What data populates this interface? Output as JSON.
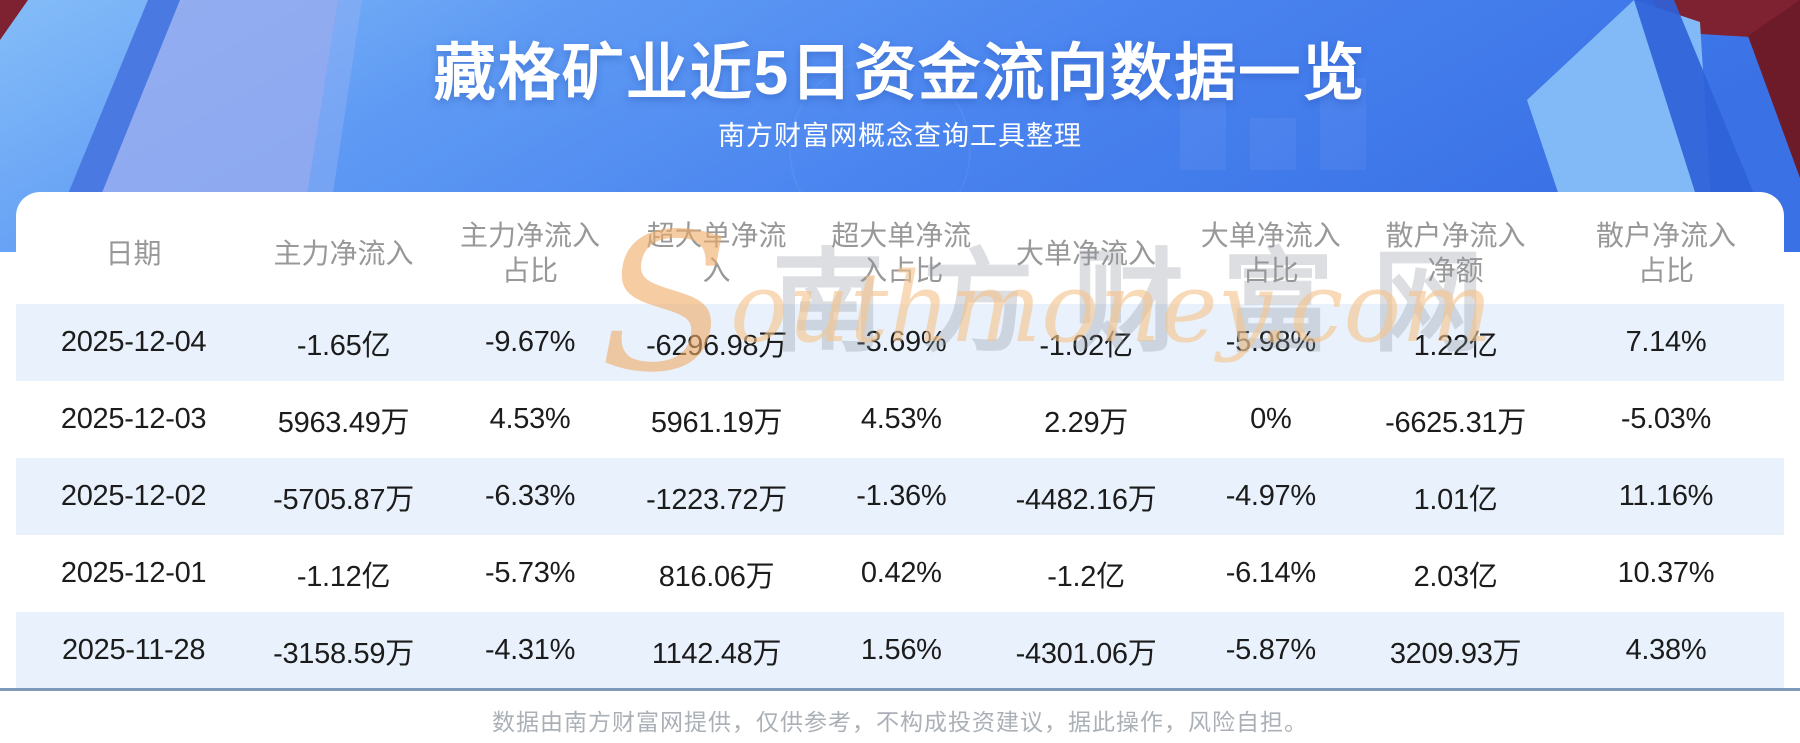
{
  "header": {
    "title": "藏格矿业近5日资金流向数据一览",
    "subtitle": "南方财富网概念查询工具整理"
  },
  "watermark": {
    "cn": "南方财富网",
    "en_first": "S",
    "en_rest": "outhmoney.com"
  },
  "chart_data": {
    "type": "table",
    "title": "藏格矿业近5日资金流向数据一览",
    "columns": [
      "日期",
      "主力净流入",
      "主力净流入占比",
      "超大单净流入",
      "超大单净流入占比",
      "大单净流入",
      "大单净流入占比",
      "散户净流入净额",
      "散户净流入占比"
    ],
    "rows": [
      [
        "2025-12-04",
        "-1.65亿",
        "-9.67%",
        "-6296.98万",
        "-3.69%",
        "-1.02亿",
        "-5.98%",
        "1.22亿",
        "7.14%"
      ],
      [
        "2025-12-03",
        "5963.49万",
        "4.53%",
        "5961.19万",
        "4.53%",
        "2.29万",
        "0%",
        "-6625.31万",
        "-5.03%"
      ],
      [
        "2025-12-02",
        "-5705.87万",
        "-6.33%",
        "-1223.72万",
        "-1.36%",
        "-4482.16万",
        "-4.97%",
        "1.01亿",
        "11.16%"
      ],
      [
        "2025-12-01",
        "-1.12亿",
        "-5.73%",
        "816.06万",
        "0.42%",
        "-1.2亿",
        "-6.14%",
        "2.03亿",
        "10.37%"
      ],
      [
        "2025-11-28",
        "-3158.59万",
        "-4.31%",
        "1142.48万",
        "1.56%",
        "-4301.06万",
        "-5.87%",
        "3209.93万",
        "4.38%"
      ]
    ]
  },
  "footer": {
    "disclaimer": "数据由南方财富网提供，仅供参考，不构成投资建议，据此操作，风险自担。"
  },
  "colors": {
    "row_stripe": "#e9f2fc",
    "divider": "#7f99bb",
    "header_text": "#989898",
    "bg_blue_mid": "#4a84ef",
    "bg_blue_light": "#85bdf8",
    "maroon_corner": "#7e2130",
    "watermark_orange": "#f0aa64",
    "watermark_gray": "#8c919b"
  }
}
